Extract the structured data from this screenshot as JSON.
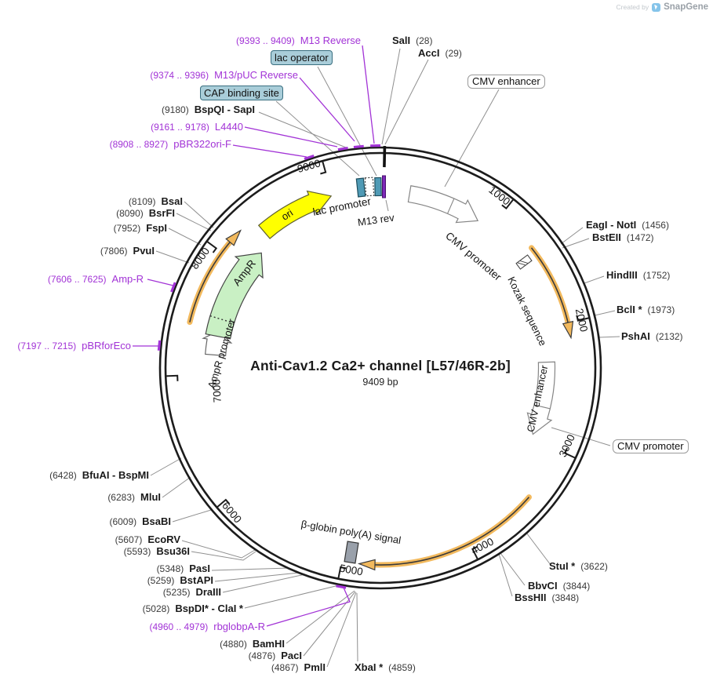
{
  "watermark": {
    "prefix": "Created by",
    "brand": "SnapGene"
  },
  "plasmid": {
    "title": "Anti-Cav1.2 Ca2+ channel [L57/46R-2b]",
    "length": "9409 bp"
  },
  "colors": {
    "primer": "#a233d6",
    "primer_bar": "#7d28b8",
    "enzyme_text": "#1a1a1a",
    "callout_gray": "#8f8f8f",
    "ring_black": "#1c1c1c",
    "teal_feature": "#4f9ab5",
    "teal_label_box": "#a9cdd9",
    "orange_band": "#f2b95d",
    "orange_core": "#3a3a3a",
    "ori_yellow": "#ffff00",
    "ampr_green": "#c9f0c4",
    "polyA_gray": "#99a0aa",
    "white_feature": "#ffffff"
  },
  "sites": {
    "sali": {
      "name": "SalI",
      "coord": "(28)"
    },
    "acci": {
      "name": "AccI",
      "coord": "(29)"
    },
    "bspqi_sapi": {
      "name": "BspQI - SapI",
      "coord": "(9180)"
    },
    "bsai": {
      "name": "BsaI",
      "coord": "(8109)"
    },
    "bsrfi": {
      "name": "BsrFI",
      "coord": "(8090)"
    },
    "fspi": {
      "name": "FspI",
      "coord": "(7952)"
    },
    "pvui": {
      "name": "PvuI",
      "coord": "(7806)"
    },
    "bfuai_bspmi": {
      "name": "BfuAI - BspMI",
      "coord": "(6428)"
    },
    "mlui": {
      "name": "MluI",
      "coord": "(6283)"
    },
    "bsabi": {
      "name": "BsaBI",
      "coord": "(6009)"
    },
    "ecorv": {
      "name": "EcoRV",
      "coord": "(5607)"
    },
    "bsu36i": {
      "name": "Bsu36I",
      "coord": "(5593)"
    },
    "pasi": {
      "name": "PasI",
      "coord": "(5348)"
    },
    "bstapi": {
      "name": "BstAPI",
      "coord": "(5259)"
    },
    "draiii": {
      "name": "DraIII",
      "coord": "(5235)"
    },
    "bspdi_clai": {
      "name": "BspDI* - ClaI *",
      "coord": "(5028)"
    },
    "bamhi": {
      "name": "BamHI",
      "coord": "(4880)"
    },
    "paci": {
      "name": "PacI",
      "coord": "(4876)"
    },
    "pmli": {
      "name": "PmlI",
      "coord": "(4867)"
    },
    "xbai": {
      "name": "XbaI *",
      "coord": "(4859)"
    },
    "eagi_noti": {
      "name": "EagI - NotI",
      "coord": "(1456)"
    },
    "bsteii": {
      "name": "BstEII",
      "coord": "(1472)"
    },
    "hindiii": {
      "name": "HindIII",
      "coord": "(1752)"
    },
    "bcli": {
      "name": "BclI *",
      "coord": "(1973)"
    },
    "pshai": {
      "name": "PshAI",
      "coord": "(2132)"
    },
    "stui": {
      "name": "StuI *",
      "coord": "(3622)"
    },
    "bbvci": {
      "name": "BbvCI",
      "coord": "(3844)"
    },
    "bsshii": {
      "name": "BssHII",
      "coord": "(3848)"
    }
  },
  "primers": {
    "m13_reverse": {
      "range": "(9393 .. 9409)",
      "name": "M13 Reverse"
    },
    "m13_puc_reverse": {
      "range": "(9374 .. 9396)",
      "name": "M13/pUC Reverse"
    },
    "l4440": {
      "range": "(9161 .. 9178)",
      "name": "L4440"
    },
    "pbr322ori_f": {
      "range": "(8908 .. 8927)",
      "name": "pBR322ori-F"
    },
    "amp_r": {
      "range": "(7606 .. 7625)",
      "name": "Amp-R"
    },
    "pbrforeco": {
      "range": "(7197 .. 7215)",
      "name": "pBRforEco"
    },
    "rbglobpa_r": {
      "range": "(4960 .. 4979)",
      "name": "rbglobpA-R"
    }
  },
  "features": {
    "lac_operator": "lac operator",
    "cap_binding_site": "CAP binding site",
    "cmv_enhancer_1": "CMV enhancer",
    "cmv_promoter_1": "CMV promoter",
    "kozak": "Kozak sequence",
    "cmv_enhancer_2": "CMV enhancer",
    "cmv_promoter_2": "CMV promoter",
    "ori": "ori",
    "ampr": "AmpR",
    "ampr_promoter": "AmpR promoter",
    "lac_promoter": "lac promoter",
    "m13_rev": "M13 rev",
    "beta_globin": "β-globin poly(A) signal"
  },
  "scale": {
    "t1000": "1000",
    "t2000": "2000",
    "t3000": "3000",
    "t4000": "4000",
    "t5000": "5000",
    "t6000": "6000",
    "t7000": "7000",
    "t8000": "8000",
    "t9000": "9000"
  }
}
